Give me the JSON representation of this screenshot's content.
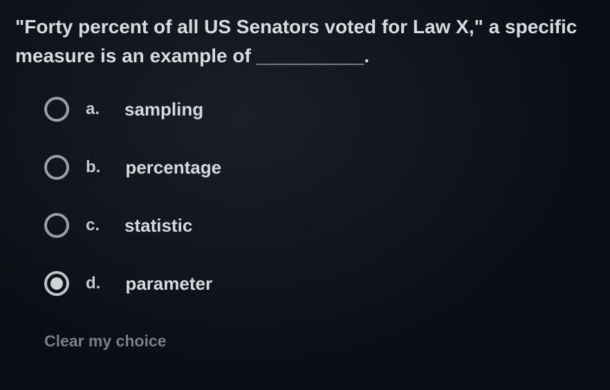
{
  "question": {
    "text": "\"Forty percent of all US Senators voted for Law X,\" a specific measure is an example of __________."
  },
  "options": [
    {
      "letter": "a.",
      "text": "sampling",
      "selected": false
    },
    {
      "letter": "b.",
      "text": "percentage",
      "selected": false
    },
    {
      "letter": "c.",
      "text": "statistic",
      "selected": false
    },
    {
      "letter": "d.",
      "text": "parameter",
      "selected": true
    }
  ],
  "clear_label": "Clear my choice",
  "colors": {
    "background": "#0a0d14",
    "text": "#d4d6da",
    "radio_border": "#9a9ea6",
    "radio_fill": "#d0d2d6",
    "clear_link": "#7a7e86"
  }
}
